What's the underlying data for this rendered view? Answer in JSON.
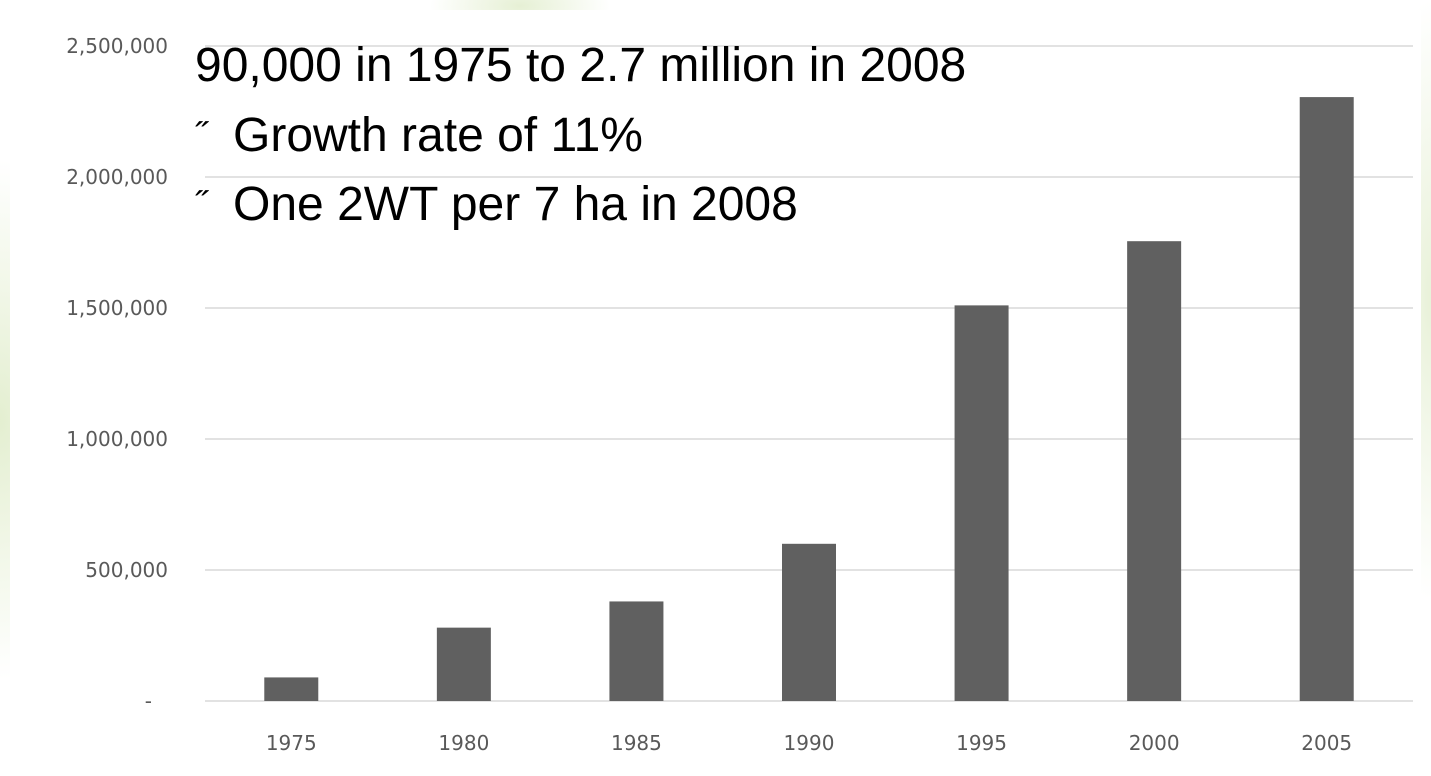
{
  "chart_data": {
    "type": "bar",
    "categories": [
      "1975",
      "1980",
      "1985",
      "1990",
      "1995",
      "2000",
      "2005"
    ],
    "values": [
      90000,
      280000,
      380000,
      600000,
      1510000,
      1755000,
      2305000
    ],
    "title": "",
    "xlabel": "",
    "ylabel": "",
    "ylim": [
      0,
      2500000
    ],
    "y_ticks": [
      {
        "value": 0,
        "label": "-"
      },
      {
        "value": 500000,
        "label": "500,000"
      },
      {
        "value": 1000000,
        "label": "1,000,000"
      },
      {
        "value": 1500000,
        "label": "1,500,000"
      },
      {
        "value": 2000000,
        "label": "2,000,000"
      },
      {
        "value": 2500000,
        "label": "2,500,000"
      }
    ],
    "grid": true,
    "legend": "none",
    "bar_color": "#606060",
    "gridline_color": "#d9d9d9"
  },
  "annotations": {
    "headline": "90,000 in 1975 to 2.7 million in 2008",
    "bullet_glyph": "˝",
    "bullets": [
      "Growth rate of 11%",
      "One 2WT per 7 ha in 2008"
    ]
  }
}
